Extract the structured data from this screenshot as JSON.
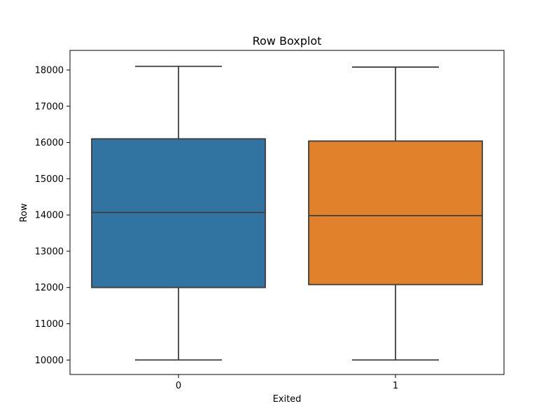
{
  "chart_data": {
    "type": "boxplot",
    "title": "Row Boxplot",
    "xlabel": "Exited",
    "ylabel": "Row",
    "categories": [
      "0",
      "1"
    ],
    "boxes": [
      {
        "category": "0",
        "whisker_low": 10000,
        "q1": 12000,
        "median": 14070,
        "q3": 16100,
        "whisker_high": 18100,
        "color": "#3274a1"
      },
      {
        "category": "1",
        "whisker_low": 10000,
        "q1": 12080,
        "median": 13980,
        "q3": 16040,
        "whisker_high": 18080,
        "color": "#e1812c"
      }
    ],
    "ylim": [
      9600,
      18540
    ],
    "yticks": [
      10000,
      11000,
      12000,
      13000,
      14000,
      15000,
      16000,
      17000,
      18000
    ],
    "grid": false,
    "legend": "none",
    "line_color": "#3d3d3d"
  }
}
